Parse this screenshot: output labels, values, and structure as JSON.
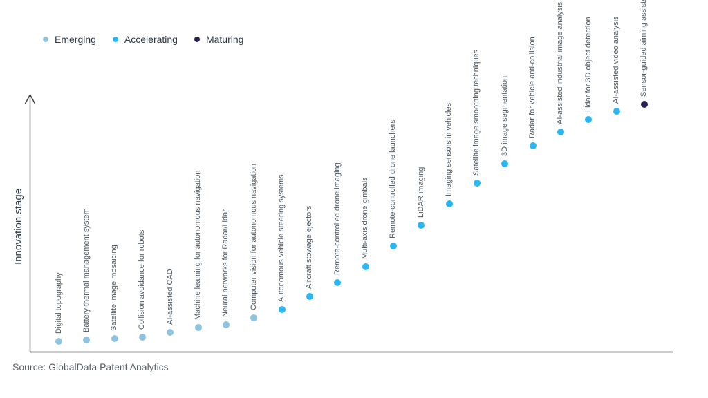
{
  "legend": {
    "items": [
      {
        "id": "emerging",
        "label": "Emerging",
        "color": "#90c3df"
      },
      {
        "id": "accelerating",
        "label": "Accelerating",
        "color": "#29b6f2"
      },
      {
        "id": "maturing",
        "label": "Maturing",
        "color": "#292050"
      }
    ]
  },
  "chart_data": {
    "type": "scatter",
    "title": "",
    "xlabel": "",
    "ylabel": "Innovation stage",
    "grid": false,
    "legend_position": "top-left",
    "y_axis": {
      "kind": "qualitative",
      "range_note": "innovation stage level, 0 = bottom of axis, 100 = top of axis"
    },
    "stage_colors": {
      "Emerging": "#90c3df",
      "Accelerating": "#29b6f2",
      "Maturing": "#292050"
    },
    "points": [
      {
        "label": "Digital topography",
        "stage": "Emerging",
        "level": 4.1
      },
      {
        "label": "Battery thermal management system",
        "stage": "Emerging",
        "level": 4.7
      },
      {
        "label": "Satellite image mosaicing",
        "stage": "Emerging",
        "level": 5.1
      },
      {
        "label": "Collision avoidance for robots",
        "stage": "Emerging",
        "level": 5.8
      },
      {
        "label": "AI-assisted CAD",
        "stage": "Emerging",
        "level": 7.6
      },
      {
        "label": "Machine learning for autonomous navigation",
        "stage": "Emerging",
        "level": 9.4
      },
      {
        "label": "Neural networks for Radar/Lidar",
        "stage": "Emerging",
        "level": 10.6
      },
      {
        "label": "Computer vision for autonomous navigation",
        "stage": "Emerging",
        "level": 13.3
      },
      {
        "label": "Autonomous vehicle steering systems",
        "stage": "Accelerating",
        "level": 16.5
      },
      {
        "label": "Aircraft stowage ejectors",
        "stage": "Accelerating",
        "level": 21.6
      },
      {
        "label": "Remote-controlled drone imaging",
        "stage": "Accelerating",
        "level": 27.1
      },
      {
        "label": "Multi-axis drone gimbals",
        "stage": "Accelerating",
        "level": 33.4
      },
      {
        "label": "Remote-controlled drone launchers",
        "stage": "Accelerating",
        "level": 41.5
      },
      {
        "label": "LiDAR imaging",
        "stage": "Accelerating",
        "level": 49.6
      },
      {
        "label": "Imaging sensors in vehicles",
        "stage": "Accelerating",
        "level": 58.0
      },
      {
        "label": "Satellite image smoothing techniques",
        "stage": "Accelerating",
        "level": 66.2
      },
      {
        "label": "3D image segmentation",
        "stage": "Accelerating",
        "level": 73.7
      },
      {
        "label": "Radar for vehicle anti-collision",
        "stage": "Accelerating",
        "level": 80.8
      },
      {
        "label": "AI-assisted industrial image analysis",
        "stage": "Accelerating",
        "level": 86.2
      },
      {
        "label": "Lidar for 3D object detection",
        "stage": "Accelerating",
        "level": 91.1
      },
      {
        "label": "AI-assisted video analysis",
        "stage": "Accelerating",
        "level": 94.3
      },
      {
        "label": "Sensor-guided aiming assists",
        "stage": "Maturing",
        "level": 97.0
      }
    ]
  },
  "source": {
    "text": "Source: GlobalData Patent Analytics"
  }
}
